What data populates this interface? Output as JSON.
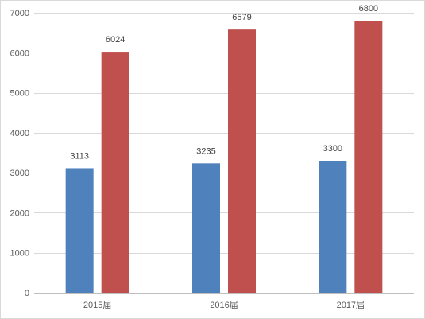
{
  "chart_data": {
    "type": "bar",
    "title": "",
    "xlabel": "",
    "ylabel": "",
    "categories": [
      "2015届",
      "2016届",
      "2017届"
    ],
    "series": [
      {
        "values": [
          3113,
          3235,
          3300
        ],
        "color": "#4f81bd"
      },
      {
        "values": [
          6024,
          6579,
          6800
        ],
        "color": "#c0504d"
      }
    ],
    "ylim": [
      0,
      7000
    ],
    "yticks": [
      "0",
      "1000",
      "2000",
      "3000",
      "4000",
      "5000",
      "6000",
      "7000"
    ],
    "grid": true,
    "legend": "none",
    "data_labels": true
  }
}
